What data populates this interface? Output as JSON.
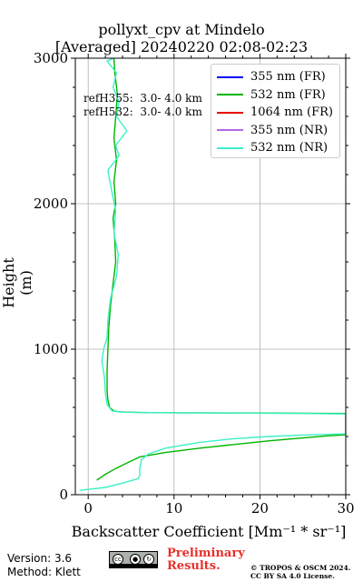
{
  "chart_data": {
    "type": "line",
    "title": "pollyxt_cpv at Mindelo",
    "subtitle": "[Averaged] 20240220 02:08-02:23",
    "xlabel": "Backscatter Coefficient [Mm⁻¹ * sr⁻¹]",
    "ylabel": "Height (m)",
    "xlim": [
      -1.5,
      30
    ],
    "ylim": [
      0,
      3000
    ],
    "xticks": [
      0,
      10,
      20,
      30
    ],
    "yticks": [
      0,
      1000,
      2000,
      3000
    ],
    "grid": true,
    "legend_position": "top-right",
    "legend": [
      {
        "name": "355 nm (FR)",
        "color": "#0000ff"
      },
      {
        "name": "532 nm (FR)",
        "color": "#00b400"
      },
      {
        "name": "1064 nm (FR)",
        "color": "#e60000"
      },
      {
        "name": "355 nm (NR)",
        "color": "#b469e6"
      },
      {
        "name": "532 nm (NR)",
        "color": "#3cf0c8"
      }
    ],
    "annotations": [
      "refH355:  3.0- 4.0 km",
      "refH532:  3.0- 4.0 km"
    ],
    "series": [
      {
        "name": "532 nm (FR)",
        "color": "#00b400",
        "points": [
          [
            1.0,
            100
          ],
          [
            2.0,
            140
          ],
          [
            3.2,
            180
          ],
          [
            4.6,
            220
          ],
          [
            6.0,
            260
          ],
          [
            9.0,
            290
          ],
          [
            13.0,
            320
          ],
          [
            17.0,
            345
          ],
          [
            21.0,
            370
          ],
          [
            25.0,
            390
          ],
          [
            28.0,
            405
          ],
          [
            30.0,
            412
          ],
          [
            30.0,
            558
          ],
          [
            25.0,
            560
          ],
          [
            20.0,
            561
          ],
          [
            15.0,
            562
          ],
          [
            10.0,
            563
          ],
          [
            6.0,
            565
          ],
          [
            4.0,
            568
          ],
          [
            3.0,
            575
          ],
          [
            2.5,
            600
          ],
          [
            2.3,
            650
          ],
          [
            2.2,
            720
          ],
          [
            2.2,
            850
          ],
          [
            2.3,
            1000
          ],
          [
            2.4,
            1150
          ],
          [
            2.6,
            1300
          ],
          [
            2.9,
            1450
          ],
          [
            3.2,
            1600
          ],
          [
            3.1,
            1750
          ],
          [
            2.9,
            1900
          ],
          [
            3.2,
            2000
          ],
          [
            3.0,
            2150
          ],
          [
            3.3,
            2300
          ],
          [
            3.0,
            2450
          ],
          [
            3.2,
            2600
          ],
          [
            3.4,
            2750
          ],
          [
            3.1,
            2900
          ],
          [
            3.0,
            3000
          ]
        ]
      },
      {
        "name": "532 nm (NR)",
        "color": "#3cf0c8",
        "points": [
          [
            -1.0,
            30
          ],
          [
            2.0,
            50
          ],
          [
            4.0,
            80
          ],
          [
            5.8,
            110
          ],
          [
            6.0,
            130
          ],
          [
            6.0,
            180
          ],
          [
            6.2,
            240
          ],
          [
            7.0,
            280
          ],
          [
            9.0,
            320
          ],
          [
            13.0,
            360
          ],
          [
            17.0,
            385
          ],
          [
            21.0,
            400
          ],
          [
            25.0,
            410
          ],
          [
            30.0,
            418
          ],
          [
            30.0,
            555
          ],
          [
            25.0,
            558
          ],
          [
            20.0,
            560
          ],
          [
            15.0,
            562
          ],
          [
            10.0,
            563
          ],
          [
            6.0,
            565
          ],
          [
            4.0,
            567
          ],
          [
            2.8,
            575
          ],
          [
            2.2,
            620
          ],
          [
            2.0,
            700
          ],
          [
            1.9,
            800
          ],
          [
            1.6,
            920
          ],
          [
            1.8,
            1000
          ],
          [
            2.2,
            1080
          ],
          [
            2.3,
            1200
          ],
          [
            2.6,
            1350
          ],
          [
            3.3,
            1500
          ],
          [
            3.5,
            1650
          ],
          [
            3.0,
            1800
          ],
          [
            3.2,
            1950
          ],
          [
            2.7,
            2100
          ],
          [
            2.3,
            2230
          ],
          [
            3.6,
            2330
          ],
          [
            3.2,
            2400
          ],
          [
            4.5,
            2500
          ],
          [
            3.3,
            2600
          ],
          [
            3.6,
            2700
          ],
          [
            2.9,
            2800
          ],
          [
            3.3,
            2900
          ],
          [
            2.2,
            2980
          ],
          [
            3.0,
            3000
          ]
        ]
      }
    ]
  },
  "footer": {
    "version": "Version: 3.6",
    "method": "Method: Klett",
    "prelim_line1": "Preliminary",
    "prelim_line2": "Results.",
    "license_line1": "© TROPOS & OSCM 2024.",
    "license_line2": "CC BY SA 4.0 License.",
    "cc_badge": {
      "icon": "cc-by-sa-icon",
      "labels": [
        "cc",
        "BY",
        "SA"
      ]
    }
  }
}
